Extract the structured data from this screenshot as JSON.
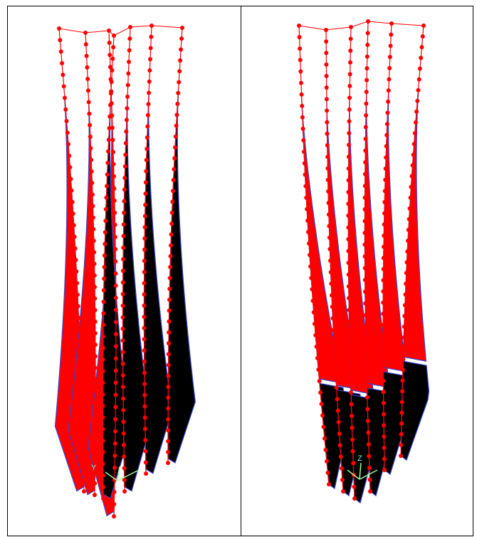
{
  "panels": [
    {
      "axis_label": "Y"
    },
    {
      "axis_label": "Z"
    }
  ]
}
